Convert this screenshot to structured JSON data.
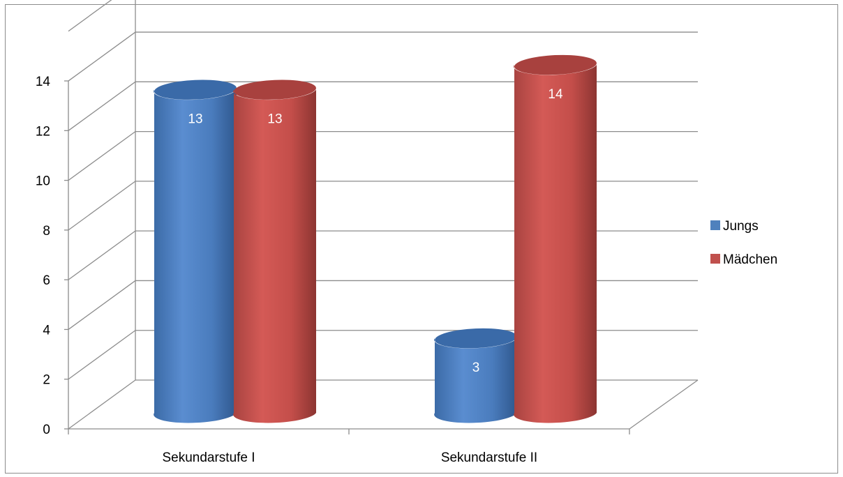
{
  "chart_data": {
    "type": "bar",
    "style": "3d-cylinder",
    "categories": [
      "Sekundarstufe I",
      "Sekundarstufe II"
    ],
    "series": [
      {
        "name": "Jungs",
        "values": [
          13,
          3
        ],
        "color": "#4f81bd"
      },
      {
        "name": "Mädchen",
        "values": [
          13,
          14
        ],
        "color": "#c0504d"
      }
    ],
    "ylim": [
      0,
      14
    ],
    "yticks": [
      0,
      2,
      4,
      6,
      8,
      10,
      12,
      14
    ],
    "grid": true,
    "legend_position": "right",
    "data_labels": true
  }
}
